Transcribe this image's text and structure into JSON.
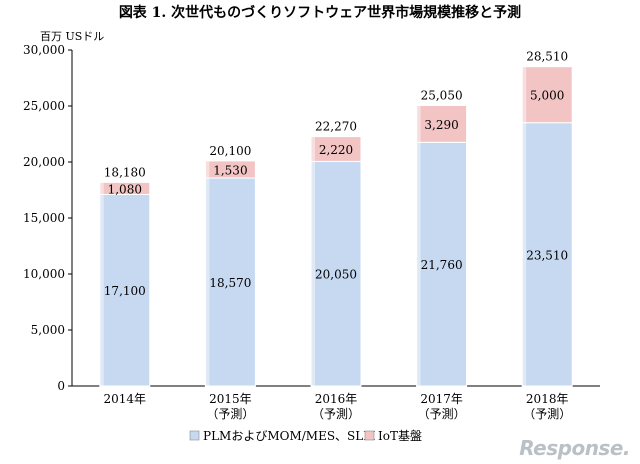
{
  "chart_data": {
    "type": "bar",
    "stacked": true,
    "title": "図表 1. 次世代ものづくりソフトウェア世界市場規模推移と予測",
    "ylabel": "百万 USドル",
    "ylim": [
      0,
      30000
    ],
    "yticks": [
      "0",
      "5,000",
      "10,000",
      "15,000",
      "20,000",
      "25,000",
      "30,000"
    ],
    "ytick_values": [
      0,
      5000,
      10000,
      15000,
      20000,
      25000,
      30000
    ],
    "categories": [
      {
        "year": "2014年",
        "note": ""
      },
      {
        "year": "2015年",
        "note": "（予測）"
      },
      {
        "year": "2016年",
        "note": "（予測）"
      },
      {
        "year": "2017年",
        "note": "（予測）"
      },
      {
        "year": "2018年",
        "note": "（予測）"
      }
    ],
    "series": [
      {
        "name": "PLMおよびMOM/MES、SLM",
        "color": "#c6d9f1",
        "values": [
          17100,
          18570,
          20050,
          21760,
          23510
        ],
        "labels": [
          "17,100",
          "18,570",
          "20,050",
          "21,760",
          "23,510"
        ]
      },
      {
        "name": "IoT基盤",
        "color": "#f2c4c4",
        "values": [
          1080,
          1530,
          2220,
          3290,
          5000
        ],
        "labels": [
          "1,080",
          "1,530",
          "2,220",
          "3,290",
          "5,000"
        ]
      }
    ],
    "totals": [
      "18,180",
      "20,100",
      "22,270",
      "25,050",
      "28,510"
    ],
    "total_values": [
      18180,
      20100,
      22270,
      25050,
      28510
    ],
    "grid": false,
    "legend": "bottom"
  },
  "watermark": "Response."
}
